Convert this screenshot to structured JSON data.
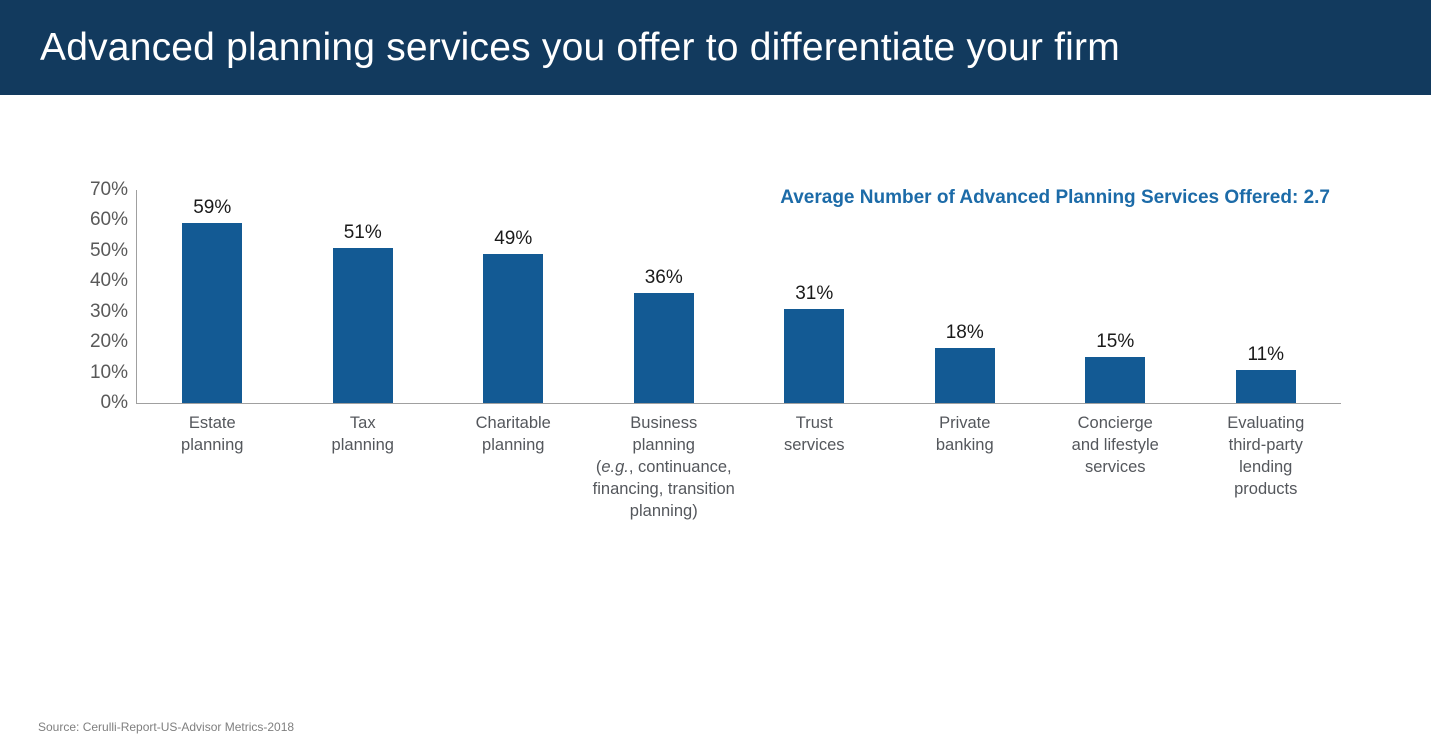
{
  "header": {
    "title": "Advanced planning services you offer to differentiate your firm"
  },
  "source": {
    "text": "Source: Cerulli-Report-US-Advisor Metrics-2018"
  },
  "colors": {
    "header_bg": "#123a5e",
    "header_text": "#ffffff",
    "bar_fill": "#135a94",
    "annotation": "#1c6ba8",
    "tick_label": "#595959",
    "category_label": "#54575c",
    "value_label": "#1a1a1a",
    "axis_line": "#a0a0a0",
    "source_text": "#7f7f7f"
  },
  "chart_data": {
    "type": "bar",
    "title": "Advanced planning services you offer to differentiate your firm",
    "annotation": "Average Number of Advanced Planning Services Offered: 2.7",
    "categories": [
      "Estate planning",
      "Tax planning",
      "Charitable planning",
      "Business planning (e.g., continuance, financing, transition planning)",
      "Trust services",
      "Private banking",
      "Concierge and lifestyle services",
      "Evaluating third-party lending products"
    ],
    "category_label_lines": [
      [
        "Estate",
        "planning"
      ],
      [
        "Tax",
        "planning"
      ],
      [
        "Charitable",
        "planning"
      ],
      [
        "Business",
        "planning",
        "(*e.g.*, continuance,",
        "financing, transition",
        "planning)"
      ],
      [
        "Trust",
        "services"
      ],
      [
        "Private",
        "banking"
      ],
      [
        "Concierge",
        "and lifestyle",
        "services"
      ],
      [
        "Evaluating",
        "third-party",
        "lending",
        "products"
      ]
    ],
    "values": [
      59,
      51,
      49,
      36,
      31,
      18,
      15,
      11
    ],
    "value_labels": [
      "59%",
      "51%",
      "49%",
      "36%",
      "31%",
      "18%",
      "15%",
      "11%"
    ],
    "xlabel": "",
    "ylabel": "",
    "ylim": [
      0,
      70
    ],
    "yticks": [
      "0%",
      "10%",
      "20%",
      "30%",
      "40%",
      "50%",
      "60%",
      "70%"
    ],
    "grid": false,
    "legend_position": "none"
  }
}
